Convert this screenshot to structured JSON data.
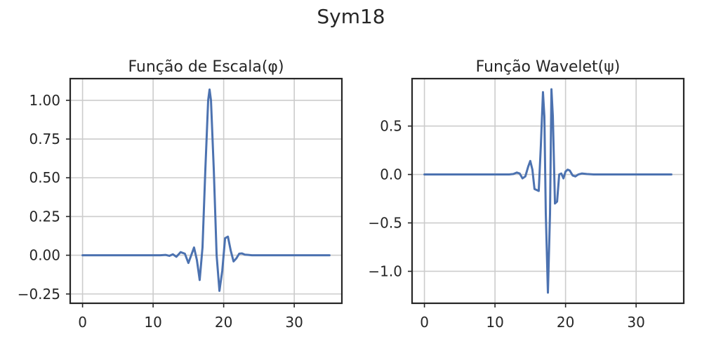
{
  "figure": {
    "suptitle": "Sym18"
  },
  "colors": {
    "series": "#4c72b0"
  },
  "chart_data": [
    {
      "type": "line",
      "title": "Função de Escala(φ)",
      "xlabel": "",
      "ylabel": "",
      "xlim": [
        -1.75,
        36.75
      ],
      "ylim": [
        -0.31,
        1.14
      ],
      "xticks": [
        0,
        10,
        20,
        30
      ],
      "xtick_labels": [
        "0",
        "10",
        "20",
        "30"
      ],
      "yticks": [
        -0.25,
        0,
        0.25,
        0.5,
        0.75,
        1.0
      ],
      "ytick_labels": [
        "−0.25",
        "0.00",
        "0.25",
        "0.50",
        "0.75",
        "1.00"
      ],
      "grid": true,
      "series": [
        {
          "x": [
            0,
            5,
            10,
            11,
            11.8,
            12.3,
            12.8,
            13.3,
            13.9,
            14.5,
            15.0,
            15.4,
            15.8,
            16.2,
            16.6,
            17.0,
            17.4,
            17.8,
            18.0,
            18.2,
            18.6,
            19.0,
            19.4,
            19.8,
            20.2,
            20.6,
            21.0,
            21.4,
            21.8,
            22.2,
            22.6,
            23.0,
            23.5,
            24.0,
            25,
            30,
            35
          ],
          "y": [
            0,
            0,
            0,
            0,
            0.002,
            -0.004,
            0.006,
            -0.01,
            0.02,
            0.01,
            -0.05,
            0.0,
            0.05,
            -0.03,
            -0.16,
            0.05,
            0.55,
            1.0,
            1.07,
            1.0,
            0.55,
            0.0,
            -0.23,
            -0.1,
            0.11,
            0.12,
            0.03,
            -0.04,
            -0.02,
            0.01,
            0.012,
            0.004,
            0.002,
            0.0,
            0,
            0,
            0
          ]
        }
      ]
    },
    {
      "type": "line",
      "title": "Função Wavelet(ψ)",
      "xlabel": "",
      "ylabel": "",
      "xlim": [
        -1.75,
        36.75
      ],
      "ylim": [
        -1.33,
        0.99
      ],
      "xticks": [
        0,
        10,
        20,
        30
      ],
      "xtick_labels": [
        "0",
        "10",
        "20",
        "30"
      ],
      "yticks": [
        -1.0,
        -0.5,
        0,
        0.5
      ],
      "ytick_labels": [
        "−1.0",
        "−0.5",
        "0.0",
        "0.5"
      ],
      "grid": true,
      "series": [
        {
          "x": [
            0,
            5,
            10,
            11,
            12,
            12.6,
            13.1,
            13.5,
            13.9,
            14.3,
            14.7,
            15.0,
            15.3,
            15.6,
            15.9,
            16.2,
            16.5,
            16.8,
            17.0,
            17.2,
            17.5,
            17.8,
            18.0,
            18.2,
            18.5,
            18.8,
            19.1,
            19.4,
            19.7,
            20.0,
            20.3,
            20.6,
            21.0,
            21.4,
            21.8,
            22.3,
            23.0,
            24.0,
            25,
            30,
            35
          ],
          "y": [
            0,
            0,
            0,
            0,
            0,
            0.005,
            0.02,
            0.01,
            -0.04,
            -0.02,
            0.08,
            0.14,
            0.05,
            -0.15,
            -0.16,
            -0.17,
            0.3,
            0.85,
            0.6,
            -0.4,
            -1.22,
            -0.4,
            0.88,
            0.6,
            -0.3,
            -0.28,
            0.0,
            0.01,
            -0.04,
            0.03,
            0.05,
            0.04,
            -0.01,
            -0.02,
            0.0,
            0.01,
            0.005,
            0.0,
            0,
            0,
            0
          ]
        }
      ]
    }
  ]
}
